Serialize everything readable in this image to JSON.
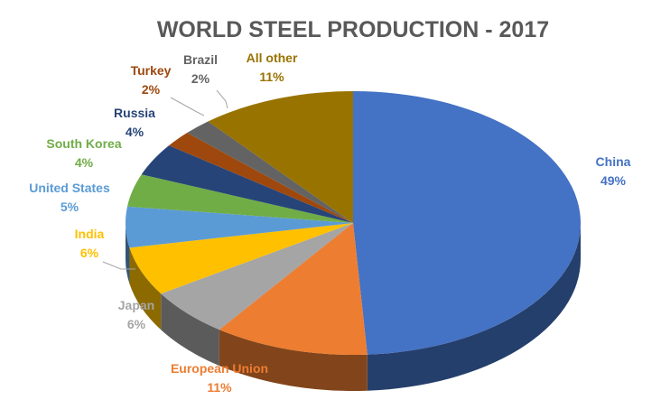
{
  "chart_data": {
    "type": "pie",
    "title": "WORLD STEEL PRODUCTION - 2017",
    "categories": [
      "China",
      "European Union",
      "Japan",
      "India",
      "United States",
      "South Korea",
      "Russia",
      "Turkey",
      "Brazil",
      "All other"
    ],
    "values": [
      49,
      11,
      6,
      6,
      5,
      4,
      4,
      2,
      2,
      11
    ],
    "value_labels": [
      "49%",
      "11%",
      "6%",
      "6%",
      "5%",
      "4%",
      "4%",
      "2%",
      "2%",
      "11%"
    ],
    "colors": [
      "#4472C4",
      "#ED7D31",
      "#A5A5A5",
      "#FFC000",
      "#5B9BD5",
      "#70AD47",
      "#264478",
      "#9E480E",
      "#636363",
      "#997300"
    ],
    "style": "3d",
    "legend": "none"
  }
}
